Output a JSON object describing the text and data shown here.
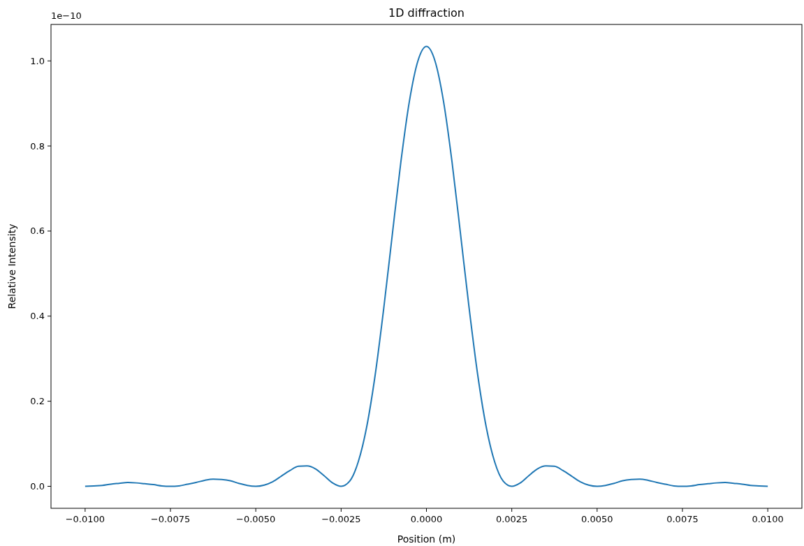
{
  "chart_data": {
    "type": "line",
    "title": "1D diffraction",
    "xlabel": "Position (m)",
    "ylabel": "Relative Intensity",
    "annotations": [
      "1e−10"
    ],
    "x": [
      -0.01,
      -0.00975,
      -0.0095,
      -0.00925,
      -0.009,
      -0.00875,
      -0.0085,
      -0.00825,
      -0.008,
      -0.00775,
      -0.0075,
      -0.00725,
      -0.007,
      -0.00675,
      -0.0065,
      -0.00625,
      -0.006,
      -0.00575,
      -0.0055,
      -0.00525,
      -0.005,
      -0.00475,
      -0.0045,
      -0.00425,
      -0.004,
      -0.00375,
      -0.0035,
      -0.00325,
      -0.003,
      -0.00275,
      -0.0025,
      -0.00225,
      -0.002,
      -0.00175,
      -0.0015,
      -0.00125,
      -0.001,
      -0.00075,
      -0.0005,
      -0.00025,
      0,
      0.00025,
      0.0005,
      0.00075,
      0.001,
      0.00125,
      0.0015,
      0.00175,
      0.002,
      0.00225,
      0.0025,
      0.00275,
      0.003,
      0.00325,
      0.0035,
      0.00375,
      0.004,
      0.00425,
      0.0045,
      0.00475,
      0.005,
      0.00525,
      0.0055,
      0.00575,
      0.006,
      0.00625,
      0.0065,
      0.00675,
      0.007,
      0.00725,
      0.0075,
      0.00775,
      0.008,
      0.00825,
      0.0085,
      0.00875,
      0.009,
      0.00925,
      0.0095,
      0.00975,
      0.01
    ],
    "series": [
      {
        "color": "#1f77b4",
        "values": [
          0,
          0.001,
          0.002,
          0.005,
          0.007,
          0.009,
          0.008,
          0.006,
          0.004,
          0.001,
          0,
          0.001,
          0.005,
          0.009,
          0.014,
          0.017,
          0.016,
          0.013,
          0.007,
          0.002,
          0,
          0.003,
          0.011,
          0.024,
          0.037,
          0.047,
          0.048,
          0.041,
          0.025,
          0.008,
          0,
          0.012,
          0.057,
          0.14,
          0.263,
          0.419,
          0.592,
          0.762,
          0.905,
          1.0,
          1.034,
          1.0,
          0.905,
          0.762,
          0.592,
          0.419,
          0.263,
          0.14,
          0.057,
          0.012,
          0,
          0.008,
          0.025,
          0.041,
          0.048,
          0.047,
          0.037,
          0.024,
          0.011,
          0.003,
          0,
          0.002,
          0.007,
          0.013,
          0.016,
          0.017,
          0.014,
          0.009,
          0.005,
          0.001,
          0,
          0.001,
          0.004,
          0.006,
          0.008,
          0.009,
          0.007,
          0.005,
          0.002,
          0.001,
          0
        ]
      }
    ],
    "xlim": [
      -0.011,
      0.011
    ],
    "ylim": [
      -0.0517,
      1.0857
    ],
    "xticks": [
      {
        "value": -0.01,
        "label": "−0.0100"
      },
      {
        "value": -0.0075,
        "label": "−0.0075"
      },
      {
        "value": -0.005,
        "label": "−0.0050"
      },
      {
        "value": -0.0025,
        "label": "−0.0025"
      },
      {
        "value": 0,
        "label": "0.0000"
      },
      {
        "value": 0.0025,
        "label": "0.0025"
      },
      {
        "value": 0.005,
        "label": "0.0050"
      },
      {
        "value": 0.0075,
        "label": "0.0075"
      },
      {
        "value": 0.01,
        "label": "0.0100"
      }
    ],
    "yticks": [
      {
        "value": 0,
        "label": "0.0"
      },
      {
        "value": 0.2,
        "label": "0.2"
      },
      {
        "value": 0.4,
        "label": "0.4"
      },
      {
        "value": 0.6,
        "label": "0.6"
      },
      {
        "value": 0.8,
        "label": "0.8"
      },
      {
        "value": 1,
        "label": "1.0"
      }
    ]
  }
}
